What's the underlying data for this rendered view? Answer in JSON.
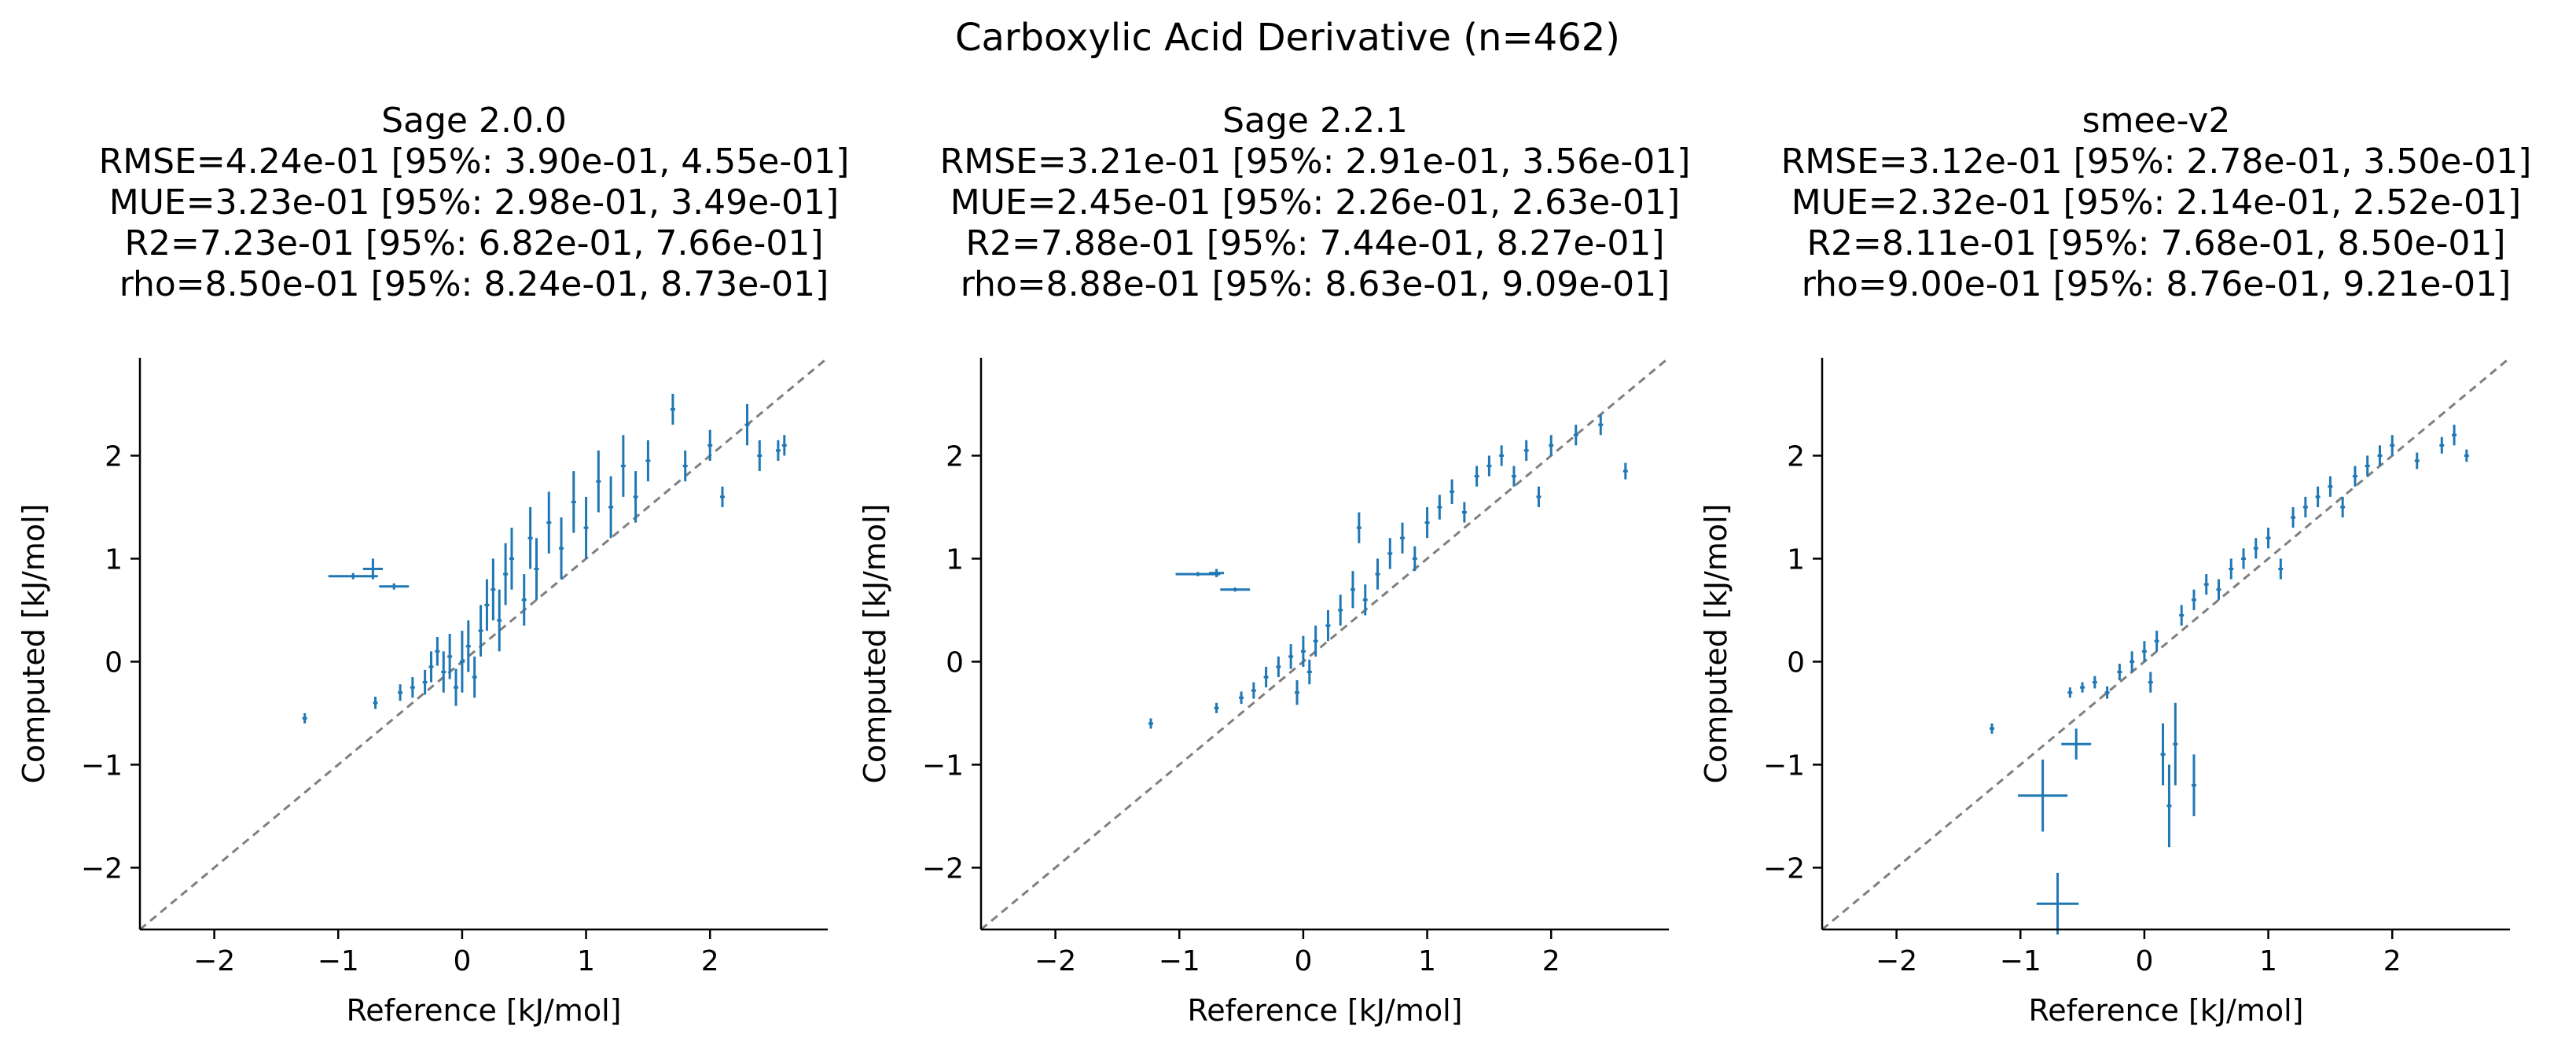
{
  "figure": {
    "suptitle": "Carboxylic Acid Derivative (n=462)"
  },
  "colors": {
    "points": "#1f77b4",
    "diagonal": "#7f7f7f",
    "axes": "#000000"
  },
  "chart_data": [
    {
      "type": "scatter",
      "title": "Sage 2.0.0",
      "stats": [
        "RMSE=4.24e-01 [95%: 3.90e-01, 4.55e-01]",
        "MUE=3.23e-01 [95%: 2.98e-01, 3.49e-01]",
        "R2=7.23e-01 [95%: 6.82e-01, 7.66e-01]",
        "rho=8.50e-01 [95%: 8.24e-01, 8.73e-01]"
      ],
      "xlabel": "Reference [kJ/mol]",
      "ylabel": "Computed [kJ/mol]",
      "xlim": [
        -2.6,
        2.95
      ],
      "ylim": [
        -2.6,
        2.95
      ],
      "xticks": [
        "−2",
        "−1",
        "0",
        "1",
        "2"
      ],
      "yticks": [
        "−2",
        "−1",
        "0",
        "1",
        "2"
      ],
      "diagonal": "y = x",
      "n_points": 462,
      "points_estimated": [
        [
          -1.27,
          -0.55,
          0,
          0.05
        ],
        [
          -0.88,
          0.83,
          0.2,
          0.03
        ],
        [
          -0.72,
          0.9,
          0.08,
          0.1
        ],
        [
          -0.55,
          0.73,
          0.12,
          0.03
        ],
        [
          -0.7,
          -0.4,
          0,
          0.06
        ],
        [
          -0.5,
          -0.3,
          0,
          0.08
        ],
        [
          -0.4,
          -0.25,
          0,
          0.1
        ],
        [
          -0.3,
          -0.2,
          0,
          0.12
        ],
        [
          -0.25,
          -0.05,
          0,
          0.15
        ],
        [
          -0.2,
          0.1,
          0,
          0.14
        ],
        [
          -0.15,
          -0.1,
          0,
          0.2
        ],
        [
          -0.1,
          0.05,
          0,
          0.22
        ],
        [
          -0.05,
          -0.25,
          0,
          0.18
        ],
        [
          0.0,
          0.0,
          0,
          0.3
        ],
        [
          0.05,
          0.15,
          0,
          0.25
        ],
        [
          0.1,
          -0.15,
          0,
          0.2
        ],
        [
          0.15,
          0.3,
          0,
          0.25
        ],
        [
          0.2,
          0.55,
          0,
          0.25
        ],
        [
          0.25,
          0.7,
          0,
          0.3
        ],
        [
          0.3,
          0.4,
          0,
          0.3
        ],
        [
          0.35,
          0.85,
          0,
          0.3
        ],
        [
          0.4,
          1.0,
          0,
          0.3
        ],
        [
          0.5,
          0.6,
          0,
          0.25
        ],
        [
          0.55,
          1.2,
          0,
          0.3
        ],
        [
          0.6,
          0.9,
          0,
          0.3
        ],
        [
          0.7,
          1.35,
          0,
          0.3
        ],
        [
          0.8,
          1.1,
          0,
          0.3
        ],
        [
          0.9,
          1.55,
          0,
          0.3
        ],
        [
          1.0,
          1.3,
          0,
          0.3
        ],
        [
          1.1,
          1.75,
          0,
          0.3
        ],
        [
          1.2,
          1.5,
          0,
          0.3
        ],
        [
          1.3,
          1.9,
          0,
          0.3
        ],
        [
          1.4,
          1.6,
          0,
          0.25
        ],
        [
          1.5,
          1.95,
          0,
          0.2
        ],
        [
          1.7,
          2.45,
          0,
          0.15
        ],
        [
          1.8,
          1.9,
          0,
          0.15
        ],
        [
          2.0,
          2.1,
          0,
          0.15
        ],
        [
          2.1,
          1.6,
          0,
          0.1
        ],
        [
          2.3,
          2.3,
          0,
          0.2
        ],
        [
          2.4,
          2.0,
          0,
          0.15
        ],
        [
          2.55,
          2.05,
          0,
          0.1
        ],
        [
          2.6,
          2.1,
          0,
          0.1
        ]
      ]
    },
    {
      "type": "scatter",
      "title": "Sage 2.2.1",
      "stats": [
        "RMSE=3.21e-01 [95%: 2.91e-01, 3.56e-01]",
        "MUE=2.45e-01 [95%: 2.26e-01, 2.63e-01]",
        "R2=7.88e-01 [95%: 7.44e-01, 8.27e-01]",
        "rho=8.88e-01 [95%: 8.63e-01, 9.09e-01]"
      ],
      "xlabel": "Reference [kJ/mol]",
      "ylabel": "Computed [kJ/mol]",
      "xlim": [
        -2.6,
        2.95
      ],
      "ylim": [
        -2.6,
        2.95
      ],
      "xticks": [
        "−2",
        "−1",
        "0",
        "1",
        "2"
      ],
      "yticks": [
        "−2",
        "−1",
        "0",
        "1",
        "2"
      ],
      "diagonal": "y = x",
      "n_points": 462,
      "points_estimated": [
        [
          -1.23,
          -0.6,
          0,
          0.05
        ],
        [
          -0.85,
          0.85,
          0.18,
          0.02
        ],
        [
          -0.7,
          0.86,
          0.06,
          0.04
        ],
        [
          -0.55,
          0.7,
          0.12,
          0.02
        ],
        [
          -0.7,
          -0.45,
          0,
          0.05
        ],
        [
          -0.5,
          -0.35,
          0,
          0.06
        ],
        [
          -0.4,
          -0.28,
          0,
          0.08
        ],
        [
          -0.3,
          -0.15,
          0,
          0.1
        ],
        [
          -0.2,
          -0.05,
          0,
          0.1
        ],
        [
          -0.1,
          0.05,
          0,
          0.12
        ],
        [
          -0.05,
          -0.3,
          0,
          0.12
        ],
        [
          0.0,
          0.1,
          0,
          0.15
        ],
        [
          0.05,
          -0.1,
          0,
          0.12
        ],
        [
          0.1,
          0.2,
          0,
          0.15
        ],
        [
          0.2,
          0.35,
          0,
          0.15
        ],
        [
          0.3,
          0.5,
          0,
          0.15
        ],
        [
          0.4,
          0.7,
          0,
          0.18
        ],
        [
          0.45,
          1.3,
          0,
          0.15
        ],
        [
          0.5,
          0.6,
          0,
          0.15
        ],
        [
          0.6,
          0.85,
          0,
          0.15
        ],
        [
          0.7,
          1.05,
          0,
          0.15
        ],
        [
          0.8,
          1.2,
          0,
          0.15
        ],
        [
          0.9,
          1.0,
          0,
          0.12
        ],
        [
          1.0,
          1.35,
          0,
          0.15
        ],
        [
          1.1,
          1.5,
          0,
          0.12
        ],
        [
          1.2,
          1.65,
          0,
          0.12
        ],
        [
          1.3,
          1.45,
          0,
          0.1
        ],
        [
          1.4,
          1.8,
          0,
          0.1
        ],
        [
          1.5,
          1.9,
          0,
          0.1
        ],
        [
          1.6,
          2.0,
          0,
          0.1
        ],
        [
          1.7,
          1.8,
          0,
          0.1
        ],
        [
          1.8,
          2.05,
          0,
          0.1
        ],
        [
          1.9,
          1.6,
          0,
          0.1
        ],
        [
          2.0,
          2.1,
          0,
          0.1
        ],
        [
          2.2,
          2.2,
          0,
          0.1
        ],
        [
          2.4,
          2.3,
          0,
          0.1
        ],
        [
          2.6,
          1.85,
          0,
          0.08
        ]
      ]
    },
    {
      "type": "scatter",
      "title": "smee-v2",
      "stats": [
        "RMSE=3.12e-01 [95%: 2.78e-01, 3.50e-01]",
        "MUE=2.32e-01 [95%: 2.14e-01, 2.52e-01]",
        "R2=8.11e-01 [95%: 7.68e-01, 8.50e-01]",
        "rho=9.00e-01 [95%: 8.76e-01, 9.21e-01]"
      ],
      "xlabel": "Reference [kJ/mol]",
      "ylabel": "Computed [kJ/mol]",
      "xlim": [
        -2.6,
        2.95
      ],
      "ylim": [
        -2.6,
        2.95
      ],
      "xticks": [
        "−2",
        "−1",
        "0",
        "1",
        "2"
      ],
      "yticks": [
        "−2",
        "−1",
        "0",
        "1",
        "2"
      ],
      "diagonal": "y = x",
      "n_points": 462,
      "points_estimated": [
        [
          -1.23,
          -0.65,
          0,
          0.05
        ],
        [
          -0.82,
          -1.3,
          0.2,
          0.35
        ],
        [
          -0.7,
          -2.35,
          0.17,
          0.3
        ],
        [
          -0.55,
          -0.8,
          0.12,
          0.15
        ],
        [
          -0.6,
          -0.3,
          0,
          0.05
        ],
        [
          -0.5,
          -0.25,
          0,
          0.05
        ],
        [
          -0.4,
          -0.2,
          0,
          0.06
        ],
        [
          -0.3,
          -0.3,
          0,
          0.06
        ],
        [
          -0.2,
          -0.1,
          0,
          0.08
        ],
        [
          -0.1,
          0.0,
          0,
          0.1
        ],
        [
          0.0,
          0.1,
          0,
          0.1
        ],
        [
          0.05,
          -0.2,
          0,
          0.1
        ],
        [
          0.1,
          0.2,
          0,
          0.1
        ],
        [
          0.15,
          -0.9,
          0,
          0.3
        ],
        [
          0.2,
          -1.4,
          0,
          0.4
        ],
        [
          0.25,
          -0.8,
          0,
          0.4
        ],
        [
          0.4,
          -1.2,
          0,
          0.3
        ],
        [
          0.3,
          0.45,
          0,
          0.1
        ],
        [
          0.4,
          0.6,
          0,
          0.1
        ],
        [
          0.5,
          0.75,
          0,
          0.1
        ],
        [
          0.6,
          0.7,
          0,
          0.1
        ],
        [
          0.7,
          0.9,
          0,
          0.1
        ],
        [
          0.8,
          1.0,
          0,
          0.1
        ],
        [
          0.9,
          1.1,
          0,
          0.1
        ],
        [
          1.0,
          1.2,
          0,
          0.1
        ],
        [
          1.1,
          0.9,
          0,
          0.1
        ],
        [
          1.2,
          1.4,
          0,
          0.1
        ],
        [
          1.3,
          1.5,
          0,
          0.1
        ],
        [
          1.4,
          1.6,
          0,
          0.1
        ],
        [
          1.5,
          1.7,
          0,
          0.1
        ],
        [
          1.6,
          1.5,
          0,
          0.1
        ],
        [
          1.7,
          1.8,
          0,
          0.1
        ],
        [
          1.8,
          1.9,
          0,
          0.1
        ],
        [
          1.9,
          2.0,
          0,
          0.1
        ],
        [
          2.0,
          2.1,
          0,
          0.1
        ],
        [
          2.2,
          1.95,
          0,
          0.08
        ],
        [
          2.4,
          2.1,
          0,
          0.08
        ],
        [
          2.5,
          2.2,
          0,
          0.1
        ],
        [
          2.6,
          2.0,
          0,
          0.06
        ]
      ]
    }
  ]
}
